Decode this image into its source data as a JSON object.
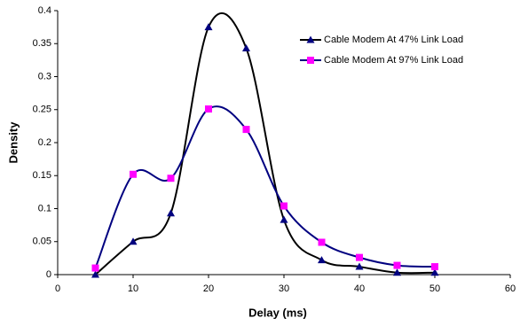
{
  "chart_data": {
    "type": "line",
    "smooth": true,
    "x_label": "Delay (ms)",
    "y_label": "Density",
    "x": [
      5,
      10,
      15,
      20,
      25,
      30,
      35,
      40,
      45,
      50
    ],
    "series": [
      {
        "name": "Cable Modem At 47% Link Load",
        "color": "#000080",
        "line_color": "#000000",
        "marker": "triangle",
        "values": [
          0,
          0.05,
          0.093,
          0.375,
          0.343,
          0.083,
          0.022,
          0.012,
          0.003,
          0.003
        ]
      },
      {
        "name": "Cable Modem At 97% Link Load",
        "color": "#ff00ff",
        "line_color": "#000080",
        "marker": "square",
        "values": [
          0.01,
          0.152,
          0.146,
          0.251,
          0.22,
          0.104,
          0.049,
          0.026,
          0.014,
          0.012
        ]
      }
    ],
    "xlim": [
      0,
      60
    ],
    "xticks": [
      0,
      10,
      20,
      30,
      40,
      50,
      60
    ],
    "ylim": [
      0,
      0.4
    ],
    "yticks": [
      0,
      0.05,
      0.1,
      0.15,
      0.2,
      0.25,
      0.3,
      0.35,
      0.4
    ],
    "legend": "top-right",
    "grid": false
  }
}
